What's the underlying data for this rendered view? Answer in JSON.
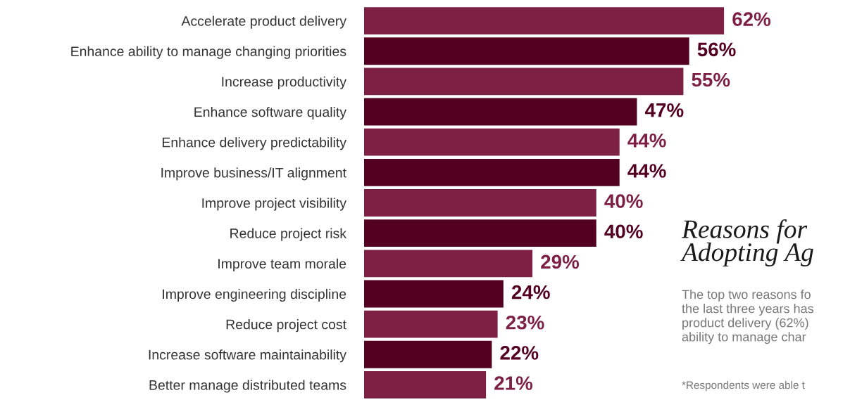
{
  "chart_data": {
    "type": "bar",
    "orientation": "horizontal",
    "title": "Reasons for\nAdopting Ag",
    "annotations": [
      "The top two reasons fo\nthe last three years has\nproduct delivery (62%)\nability to manage char",
      "*Respondents were able t"
    ],
    "categories": [
      "Accelerate product delivery",
      "Enhance ability to manage changing priorities",
      "Increase productivity",
      "Enhance software quality",
      "Enhance delivery predictability",
      "Improve business/IT alignment",
      "Improve project visibility",
      "Reduce project risk",
      "Improve team morale",
      "Improve engineering discipline",
      "Reduce project cost",
      "Increase software maintainability",
      "Better manage distributed teams"
    ],
    "values": [
      62,
      56,
      55,
      47,
      44,
      44,
      40,
      40,
      29,
      24,
      23,
      22,
      21
    ],
    "colors": [
      "#7d2044",
      "#540020",
      "#7d2044",
      "#540020",
      "#7d2044",
      "#540020",
      "#7d2044",
      "#540020",
      "#7d2044",
      "#540020",
      "#7d2044",
      "#540020",
      "#7d2044"
    ],
    "value_labels": [
      "62%",
      "56%",
      "55%",
      "47%",
      "44%",
      "44%",
      "40%",
      "40%",
      "29%",
      "24%",
      "23%",
      "22%",
      "21%"
    ],
    "grid": false,
    "legend": false
  }
}
